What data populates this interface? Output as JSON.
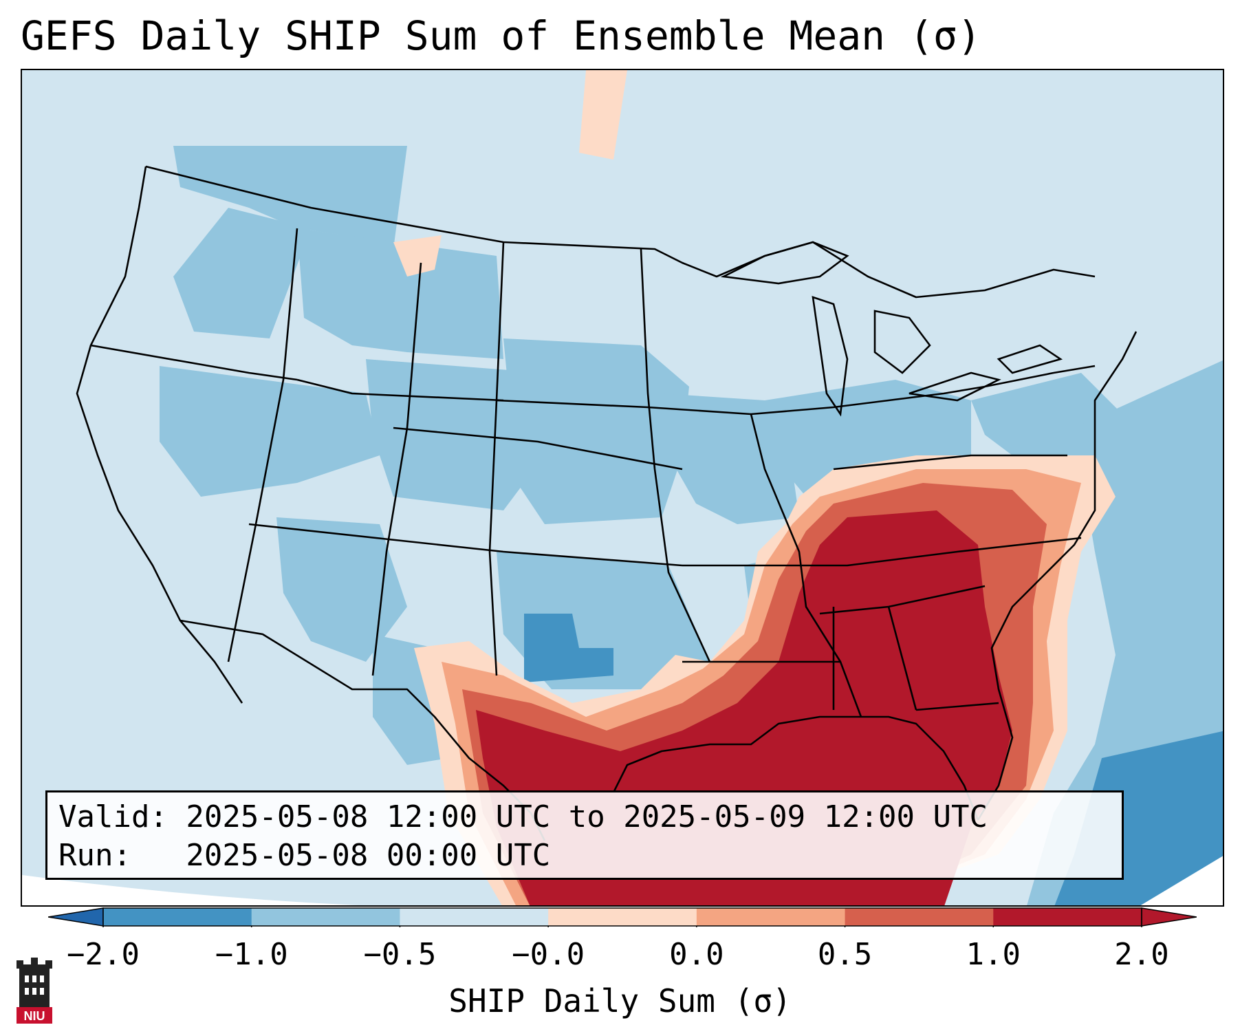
{
  "title": "GEFS Daily SHIP Sum of Ensemble Mean (σ)",
  "info": {
    "valid_line": "Valid: 2025-05-08 12:00 UTC to 2025-05-09 12:00 UTC",
    "run_line": "Run:   2025-05-08 00:00 UTC"
  },
  "colorbar": {
    "label": "SHIP Daily Sum (σ)",
    "ticks": [
      "−2.0",
      "−1.0",
      "−0.5",
      "−0.0",
      "0.0",
      "0.5",
      "1.0",
      "2.0"
    ],
    "colors": [
      "#4393c3",
      "#92c5de",
      "#d1e5f0",
      "#f7f7f7",
      "#fddbc7",
      "#f4a582",
      "#d6604d",
      "#b2182b"
    ],
    "extend_low_color": "#2166ac",
    "extend_high_color": "#b2182b"
  },
  "map": {
    "region": "Continental United States",
    "projection": "Lambert conformal",
    "field": "SHIP daily sum anomaly",
    "background_color": "#d1e5f0",
    "high_anomaly_region": "Gulf Coast and Southeast US",
    "high_anomaly_color": "#b2182b",
    "low_anomaly_color": "#4393c3"
  },
  "logo": {
    "text": "NIU",
    "color": "#c8102e"
  }
}
